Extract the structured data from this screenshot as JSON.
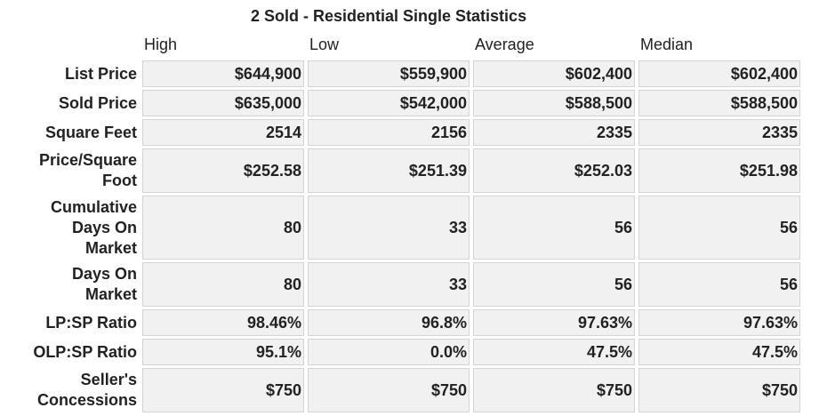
{
  "title": "2 Sold - Residential Single Statistics",
  "columns": [
    "High",
    "Low",
    "Average",
    "Median"
  ],
  "rows": [
    {
      "label": "List Price",
      "values": [
        "$644,900",
        "$559,900",
        "$602,400",
        "$602,400"
      ]
    },
    {
      "label": "Sold Price",
      "values": [
        "$635,000",
        "$542,000",
        "$588,500",
        "$588,500"
      ]
    },
    {
      "label": "Square Feet",
      "values": [
        "2514",
        "2156",
        "2335",
        "2335"
      ]
    },
    {
      "label": "Price/Square Foot",
      "values": [
        "$252.58",
        "$251.39",
        "$252.03",
        "$251.98"
      ]
    },
    {
      "label": "Cumulative Days On Market",
      "values": [
        "80",
        "33",
        "56",
        "56"
      ]
    },
    {
      "label": "Days On Market",
      "values": [
        "80",
        "33",
        "56",
        "56"
      ]
    },
    {
      "label": "LP:SP Ratio",
      "values": [
        "98.46%",
        "96.8%",
        "97.63%",
        "97.63%"
      ]
    },
    {
      "label": "OLP:SP Ratio",
      "values": [
        "95.1%",
        "0.0%",
        "47.5%",
        "47.5%"
      ]
    },
    {
      "label": "Seller's Concessions",
      "values": [
        "$750",
        "$750",
        "$750",
        "$750"
      ]
    }
  ]
}
